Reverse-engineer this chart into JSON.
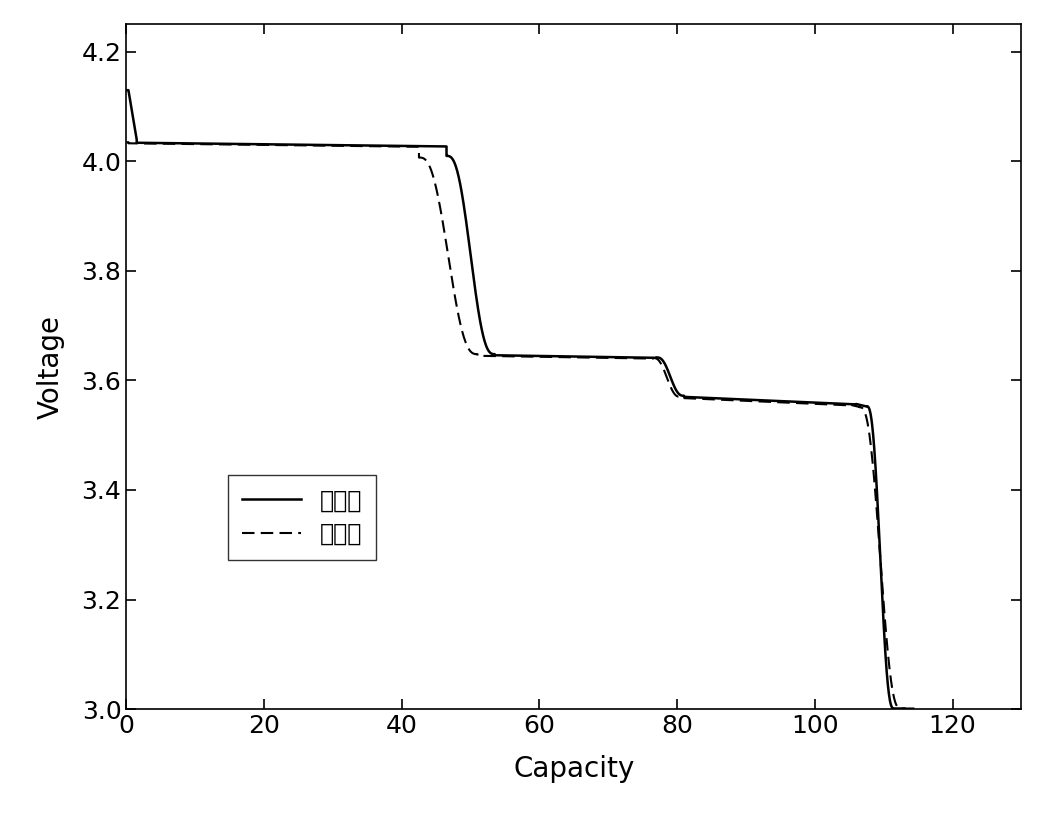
{
  "title": "",
  "xlabel": "Capacity",
  "ylabel": "Voltage",
  "xlim": [
    0,
    130
  ],
  "ylim": [
    3.0,
    4.25
  ],
  "xticks": [
    0,
    20,
    40,
    60,
    80,
    100,
    120
  ],
  "yticks": [
    3.0,
    3.2,
    3.4,
    3.6,
    3.8,
    4.0,
    4.2
  ],
  "legend_labels": [
    "搾置前",
    "搾置后"
  ],
  "background_color": "#ffffff",
  "line_color": "#000000",
  "figsize": [
    10.53,
    8.15
  ],
  "dpi": 100
}
